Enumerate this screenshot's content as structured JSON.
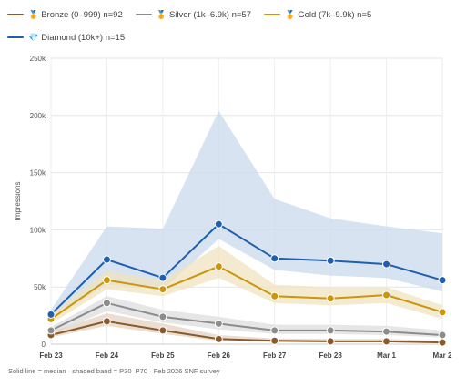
{
  "legend": {
    "rows": [
      [
        {
          "badge": "🏅",
          "label": "Bronze (0–999) n=92",
          "color": "#8B5A2B"
        },
        {
          "badge": "🏅",
          "label": "Silver (1k–6.9k) n=57",
          "color": "#8C8C8C"
        },
        {
          "badge": "🏅",
          "label": "Gold (7k–9.9k) n=5",
          "color": "#C9960C"
        }
      ],
      [
        {
          "badge": "💎",
          "label": "Diamond (10k+) n=15",
          "color": "#1F5FAE"
        }
      ]
    ]
  },
  "caption": "Solid line = median · shaded band = P30–P70 · Feb 2026 SNF survey",
  "chart_data": {
    "type": "line",
    "categories": [
      "Feb 23",
      "Feb 24",
      "Feb 25",
      "Feb 26",
      "Feb 27",
      "Feb 28",
      "Mar 1",
      "Mar 2"
    ],
    "ylabel": "Impressions",
    "ylim": [
      0,
      250000
    ],
    "yticks": [
      0,
      50000,
      100000,
      150000,
      200000,
      250000
    ],
    "ytick_labels": [
      "0",
      "50k",
      "100k",
      "150k",
      "200k",
      "250k"
    ],
    "grid": true,
    "series": [
      {
        "name": "Bronze (0–999) n=92",
        "color": "#8B5A2B",
        "band_color": "#E3D2C2",
        "values": [
          8000,
          20000,
          12000,
          4500,
          3000,
          2500,
          2500,
          1500
        ],
        "band_low": [
          6000,
          16000,
          9000,
          3000,
          2000,
          1500,
          1500,
          1000
        ],
        "band_high": [
          11000,
          27000,
          18000,
          8000,
          5000,
          4500,
          4500,
          3000
        ]
      },
      {
        "name": "Silver (1k–6.9k) n=57",
        "color": "#8C8C8C",
        "band_color": "#DDDDDD",
        "values": [
          12000,
          36000,
          24000,
          18000,
          12000,
          12000,
          11000,
          8000
        ],
        "band_low": [
          9000,
          29000,
          19000,
          13000,
          9000,
          9000,
          8000,
          6000
        ],
        "band_high": [
          15000,
          42000,
          30000,
          24000,
          17000,
          17000,
          16000,
          12000
        ]
      },
      {
        "name": "Gold (7k–9.9k) n=5",
        "color": "#C9960C",
        "band_color": "#F0E3BF",
        "values": [
          22000,
          56000,
          48000,
          68000,
          42000,
          40000,
          43000,
          28000
        ],
        "band_low": [
          18000,
          48000,
          42000,
          58000,
          36000,
          34000,
          36000,
          22000
        ],
        "band_high": [
          26000,
          64000,
          56000,
          86000,
          52000,
          50000,
          50000,
          34000
        ]
      },
      {
        "name": "Diamond (10k+) n=15",
        "color": "#1F5FAE",
        "band_color": "#C9D9EC",
        "values": [
          26000,
          74000,
          58000,
          105000,
          75000,
          73000,
          70000,
          56000
        ],
        "band_low": [
          22000,
          52000,
          48000,
          92000,
          65000,
          60000,
          58000,
          46000
        ],
        "band_high": [
          30000,
          103000,
          101000,
          204000,
          127000,
          110000,
          103000,
          97000
        ]
      }
    ]
  }
}
